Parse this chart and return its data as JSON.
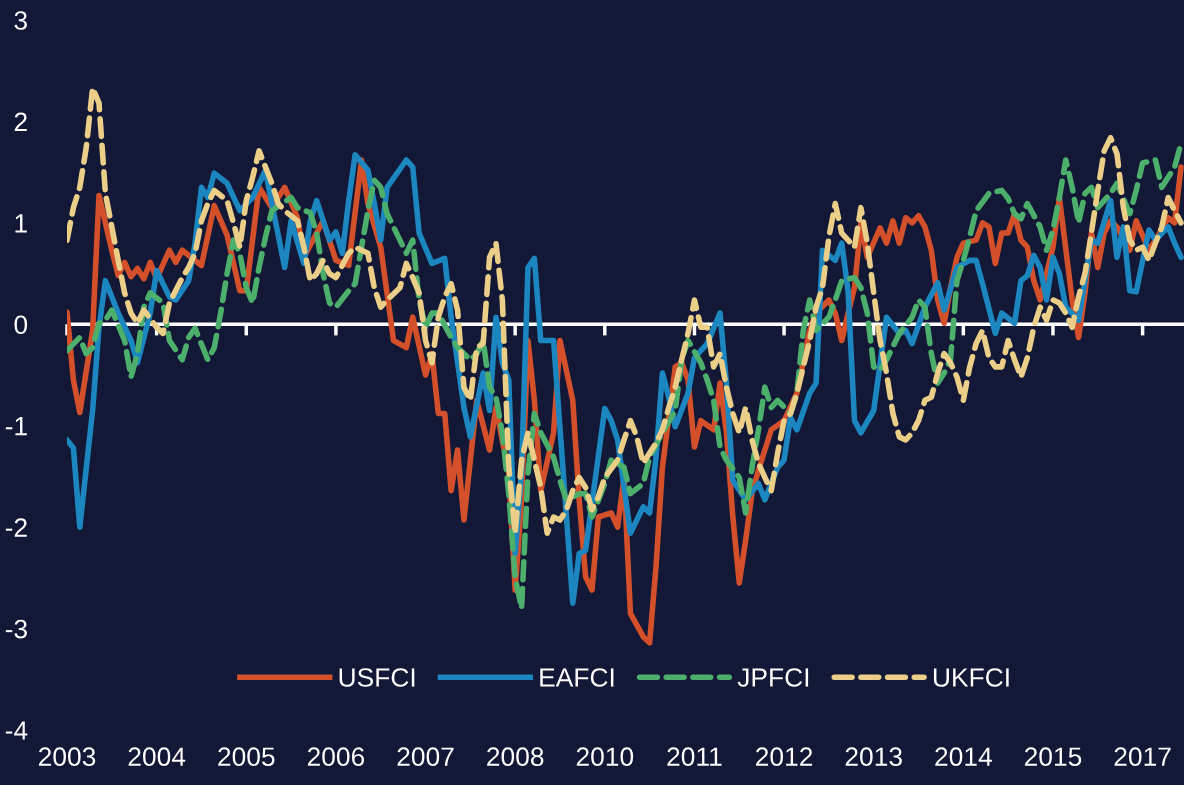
{
  "chart_data": {
    "type": "line",
    "xlim": [
      "2003-01",
      "2017-07-15"
    ],
    "xticks": [
      {
        "value": "2003-01",
        "label": "2003"
      },
      {
        "value": "2004-03",
        "label": "2004"
      },
      {
        "value": "2005-05",
        "label": "2005"
      },
      {
        "value": "2006-07",
        "label": "2006"
      },
      {
        "value": "2007-09",
        "label": "2007"
      },
      {
        "value": "2008-11",
        "label": "2008"
      },
      {
        "value": "2010-01",
        "label": "2010"
      },
      {
        "value": "2011-03",
        "label": "2011"
      },
      {
        "value": "2012-05",
        "label": "2012"
      },
      {
        "value": "2013-07",
        "label": "2013"
      },
      {
        "value": "2014-09",
        "label": "2014"
      },
      {
        "value": "2015-11",
        "label": "2015"
      },
      {
        "value": "2017-01",
        "label": "2017"
      }
    ],
    "ylim": [
      -4,
      3
    ],
    "yticks": [
      -4,
      -3,
      -2,
      -1,
      0,
      1,
      2,
      3
    ],
    "legend": "bottom",
    "ref_lines": [
      {
        "axis": "y",
        "value": 0,
        "color": "#ffffff",
        "line_style": "solid"
      }
    ],
    "series": [
      {
        "name": "USFCI",
        "color": "#d4502a",
        "line_style": "solid",
        "x": [
          "2003-01",
          "2003-02",
          "2003-03",
          "2003-05",
          "2003-06",
          "2003-08",
          "2003-09",
          "2003-10",
          "2003-11",
          "2003-12",
          "2004-01",
          "2004-02",
          "2004-03",
          "2004-05",
          "2004-06",
          "2004-07",
          "2004-10",
          "2004-12",
          "2005-02",
          "2005-04",
          "2005-05",
          "2005-07",
          "2005-09",
          "2005-11",
          "2006-01",
          "2006-02",
          "2006-05",
          "2006-07",
          "2006-09",
          "2006-11",
          "2006-12",
          "2007-02",
          "2007-04",
          "2007-06",
          "2007-07",
          "2007-09",
          "2007-10",
          "2007-11",
          "2007-12",
          "2008-01",
          "2008-02",
          "2008-03",
          "2008-05",
          "2008-07",
          "2008-08",
          "2008-10",
          "2008-11",
          "2008-12",
          "2009-01",
          "2009-02",
          "2009-03",
          "2009-05",
          "2009-06",
          "2009-08",
          "2009-09",
          "2009-10",
          "2009-11",
          "2009-12",
          "2010-02",
          "2010-03",
          "2010-04",
          "2010-05",
          "2010-07",
          "2010-08",
          "2010-09",
          "2010-10",
          "2010-12",
          "2011-01",
          "2011-02",
          "2011-03",
          "2011-04",
          "2011-06",
          "2011-07",
          "2011-08",
          "2011-09",
          "2011-10",
          "2011-11",
          "2011-12",
          "2012-01",
          "2012-03",
          "2012-05",
          "2012-07",
          "2012-09",
          "2012-10",
          "2012-12",
          "2013-01",
          "2013-02",
          "2013-03",
          "2013-04",
          "2013-05",
          "2013-06",
          "2013-08",
          "2013-09",
          "2013-10",
          "2013-11",
          "2013-12",
          "2014-01",
          "2014-02",
          "2014-03",
          "2014-04",
          "2014-05",
          "2014-06",
          "2014-07",
          "2014-08",
          "2014-09",
          "2014-11",
          "2014-12",
          "2015-01",
          "2015-02",
          "2015-03",
          "2015-04",
          "2015-05",
          "2015-06",
          "2015-07",
          "2015-08",
          "2015-09",
          "2015-11",
          "2015-12",
          "2016-02",
          "2016-03",
          "2016-04",
          "2016-05",
          "2016-06",
          "2016-07",
          "2016-08",
          "2016-09",
          "2016-11",
          "2016-12",
          "2017-02",
          "2017-03",
          "2017-05",
          "2017-06",
          "2017-07"
        ],
        "values": [
          0.12,
          -0.55,
          -0.87,
          -0.06,
          1.27,
          0.73,
          0.48,
          0.61,
          0.47,
          0.55,
          0.45,
          0.61,
          0.45,
          0.73,
          0.61,
          0.73,
          0.58,
          1.17,
          0.88,
          0.33,
          0.33,
          1.35,
          1.15,
          1.35,
          1.05,
          0.66,
          1.02,
          0.63,
          0.58,
          1.62,
          1.19,
          0.76,
          -0.16,
          -0.23,
          0.07,
          -0.5,
          -0.29,
          -0.88,
          -0.88,
          -1.64,
          -1.24,
          -1.93,
          -0.75,
          -1.24,
          -0.82,
          -1.47,
          -2.62,
          -1.73,
          -0.16,
          -0.75,
          -1.64,
          -1.07,
          -0.16,
          -0.75,
          -1.73,
          -2.49,
          -2.62,
          -1.9,
          -1.86,
          -2.0,
          -1.51,
          -2.85,
          -3.08,
          -3.14,
          -2.39,
          -1.41,
          -0.42,
          -0.38,
          -0.55,
          -1.21,
          -0.95,
          -1.04,
          -0.58,
          -1.07,
          -1.9,
          -2.55,
          -2.13,
          -1.66,
          -1.44,
          -1.04,
          -0.95,
          -0.68,
          -0.06,
          0.11,
          0.24,
          0.11,
          -0.16,
          0.11,
          0.36,
          1.0,
          0.66,
          0.95,
          0.8,
          1.02,
          0.8,
          1.05,
          1.0,
          1.07,
          0.96,
          0.73,
          0.24,
          0.01,
          0.36,
          0.66,
          0.8,
          0.83,
          1.0,
          0.96,
          0.6,
          0.9,
          0.9,
          1.09,
          0.83,
          0.76,
          0.43,
          0.24,
          0.76,
          1.25,
          0.24,
          -0.13,
          0.31,
          0.9,
          0.56,
          0.9,
          1.02,
          0.96,
          0.73,
          1.02,
          0.73,
          0.83,
          1.05,
          1.0,
          1.55
        ]
      },
      {
        "name": "EAFCI",
        "color": "#1b86bf",
        "line_style": "solid",
        "x": [
          "2003-01",
          "2003-02",
          "2003-03",
          "2003-05",
          "2003-06",
          "2003-07",
          "2003-09",
          "2003-11",
          "2003-12",
          "2004-02",
          "2004-03",
          "2004-05",
          "2004-06",
          "2004-08",
          "2004-09",
          "2004-10",
          "2004-11",
          "2004-12",
          "2005-02",
          "2005-04",
          "2005-06",
          "2005-08",
          "2005-09",
          "2005-11",
          "2005-12",
          "2006-02",
          "2006-03",
          "2006-04",
          "2006-06",
          "2006-07",
          "2006-08",
          "2006-09",
          "2006-10",
          "2006-12",
          "2007-01",
          "2007-02",
          "2007-03",
          "2007-06",
          "2007-07",
          "2007-08",
          "2007-10",
          "2007-12",
          "2008-01",
          "2008-03",
          "2008-04",
          "2008-06",
          "2008-07",
          "2008-08",
          "2008-09",
          "2008-10",
          "2008-11",
          "2008-12",
          "2009-01",
          "2009-02",
          "2009-03",
          "2009-05",
          "2009-08",
          "2009-09",
          "2009-10",
          "2010-01",
          "2010-02",
          "2010-03",
          "2010-05",
          "2010-07",
          "2010-08",
          "2010-09",
          "2010-10",
          "2010-11",
          "2010-12",
          "2011-02",
          "2011-03",
          "2011-05",
          "2011-07",
          "2011-08",
          "2011-09",
          "2011-11",
          "2012-01",
          "2012-02",
          "2012-04",
          "2012-05",
          "2012-06",
          "2012-07",
          "2012-09",
          "2012-10",
          "2012-11",
          "2013-01",
          "2013-02",
          "2013-03",
          "2013-04",
          "2013-05",
          "2013-07",
          "2013-09",
          "2013-11",
          "2013-12",
          "2014-01",
          "2014-03",
          "2014-05",
          "2014-06",
          "2014-08",
          "2014-10",
          "2014-11",
          "2014-12",
          "2015-02",
          "2015-03",
          "2015-05",
          "2015-06",
          "2015-07",
          "2015-08",
          "2015-09",
          "2015-10",
          "2015-11",
          "2015-12",
          "2016-01",
          "2016-03",
          "2016-05",
          "2016-06",
          "2016-08",
          "2016-09",
          "2016-10",
          "2016-11",
          "2016-12",
          "2017-02",
          "2017-03",
          "2017-05",
          "2017-06",
          "2017-07"
        ],
        "values": [
          -1.14,
          -1.22,
          -2.0,
          -0.85,
          -0.03,
          0.43,
          0.11,
          -0.16,
          -0.38,
          0.11,
          0.53,
          0.27,
          0.24,
          0.43,
          0.8,
          1.35,
          1.25,
          1.49,
          1.39,
          1.12,
          1.25,
          1.52,
          1.19,
          0.56,
          1.02,
          0.6,
          1.02,
          1.22,
          0.83,
          0.91,
          0.7,
          1.22,
          1.67,
          1.52,
          1.19,
          0.83,
          1.35,
          1.62,
          1.55,
          0.9,
          0.6,
          0.65,
          0.07,
          -0.82,
          -1.11,
          -0.48,
          -0.85,
          0.07,
          -0.38,
          -0.55,
          -2.26,
          -1.44,
          0.56,
          0.65,
          -0.16,
          -0.16,
          -2.75,
          -2.26,
          -2.23,
          -0.83,
          -0.95,
          -1.14,
          -2.06,
          -1.8,
          -1.86,
          -1.31,
          -0.48,
          -0.72,
          -1.01,
          -0.68,
          -0.33,
          -0.19,
          0.11,
          -0.58,
          -1.54,
          -1.73,
          -1.57,
          -1.73,
          -1.41,
          -1.34,
          -0.92,
          -1.04,
          -0.68,
          -0.58,
          0.73,
          0.63,
          0.8,
          0.33,
          -0.95,
          -1.07,
          -0.85,
          0.07,
          -0.09,
          -0.06,
          -0.19,
          0.17,
          0.41,
          0.14,
          0.56,
          0.63,
          0.63,
          0.4,
          -0.09,
          0.11,
          0.01,
          0.43,
          0.48,
          0.68,
          0.56,
          0.24,
          0.66,
          0.5,
          0.17,
          0.04,
          0.83,
          0.8,
          1.22,
          0.66,
          0.96,
          0.33,
          0.32,
          0.93,
          0.83,
          0.96,
          0.8,
          0.66
        ]
      },
      {
        "name": "JPFCI",
        "color": "#4caf6c",
        "line_style": "dashed",
        "x": [
          "2003-01",
          "2003-03",
          "2003-04",
          "2003-05",
          "2003-06",
          "2003-07",
          "2003-08",
          "2003-10",
          "2003-11",
          "2003-12",
          "2004-01",
          "2004-02",
          "2004-04",
          "2004-05",
          "2004-07",
          "2004-08",
          "2004-09",
          "2004-11",
          "2004-12",
          "2005-01",
          "2005-02",
          "2005-03",
          "2005-04",
          "2005-05",
          "2005-06",
          "2005-07",
          "2005-08",
          "2005-09",
          "2005-12",
          "2006-01",
          "2006-03",
          "2006-04",
          "2006-05",
          "2006-06",
          "2006-07",
          "2006-09",
          "2006-10",
          "2006-11",
          "2006-12",
          "2007-01",
          "2007-02",
          "2007-03",
          "2007-05",
          "2007-06",
          "2007-07",
          "2007-08",
          "2007-09",
          "2007-10",
          "2007-11",
          "2008-01",
          "2008-02",
          "2008-04",
          "2008-05",
          "2008-06",
          "2008-07",
          "2008-08",
          "2008-09",
          "2008-10",
          "2008-11",
          "2008-12",
          "2009-01",
          "2009-02",
          "2009-03",
          "2009-05",
          "2009-06",
          "2009-07",
          "2009-09",
          "2009-10",
          "2009-11",
          "2010-01",
          "2010-02",
          "2010-04",
          "2010-05",
          "2010-07",
          "2010-08",
          "2010-10",
          "2010-12",
          "2011-01",
          "2011-02",
          "2011-04",
          "2011-05",
          "2011-06",
          "2011-07",
          "2011-08",
          "2011-10",
          "2011-11",
          "2011-12",
          "2012-01",
          "2012-02",
          "2012-03",
          "2012-04",
          "2012-06",
          "2012-07",
          "2012-08",
          "2012-09",
          "2012-10",
          "2012-12",
          "2013-01",
          "2013-02",
          "2013-04",
          "2013-05",
          "2013-06",
          "2013-07",
          "2013-08",
          "2013-09",
          "2013-11",
          "2014-01",
          "2014-02",
          "2014-03",
          "2014-04",
          "2014-05",
          "2014-06",
          "2014-07",
          "2014-08",
          "2014-09",
          "2014-10",
          "2014-11",
          "2015-01",
          "2015-03",
          "2015-04",
          "2015-05",
          "2015-06",
          "2015-07",
          "2015-09",
          "2015-10",
          "2015-11",
          "2015-12",
          "2016-01",
          "2016-02",
          "2016-03",
          "2016-04",
          "2016-05",
          "2016-06",
          "2016-08",
          "2016-09",
          "2016-11",
          "2016-12",
          "2017-01",
          "2017-03",
          "2017-04",
          "2017-06",
          "2017-07"
        ],
        "values": [
          -0.26,
          -0.13,
          -0.29,
          -0.23,
          0.01,
          0.04,
          0.14,
          -0.16,
          -0.52,
          -0.29,
          0.17,
          0.31,
          0.21,
          -0.16,
          -0.35,
          -0.13,
          -0.04,
          -0.35,
          -0.23,
          0.11,
          0.5,
          0.83,
          0.7,
          0.36,
          0.21,
          0.56,
          0.86,
          1.12,
          1.25,
          1.15,
          1.1,
          0.9,
          0.5,
          0.21,
          0.17,
          0.33,
          0.4,
          0.76,
          1.12,
          1.42,
          1.35,
          1.09,
          0.83,
          0.7,
          0.83,
          0.24,
          -0.03,
          0.11,
          0.11,
          -0.13,
          -0.23,
          -0.35,
          -0.29,
          -0.16,
          -0.62,
          -0.72,
          -1.07,
          -1.67,
          -2.5,
          -2.8,
          -1.47,
          -0.88,
          -1.07,
          -1.31,
          -1.54,
          -1.73,
          -1.67,
          -1.67,
          -1.9,
          -1.57,
          -1.34,
          -1.41,
          -1.67,
          -1.57,
          -1.31,
          -1.07,
          -0.85,
          -0.35,
          -0.16,
          -0.38,
          -0.55,
          -0.75,
          -1.21,
          -1.34,
          -1.51,
          -1.86,
          -1.41,
          -1.04,
          -0.62,
          -0.82,
          -0.75,
          -0.88,
          -0.68,
          -0.06,
          0.24,
          -0.06,
          0.07,
          0.24,
          0.43,
          0.46,
          0.36,
          0.11,
          -0.42,
          -0.45,
          -0.35,
          -0.09,
          0.07,
          0.24,
          0.17,
          -0.29,
          -0.58,
          -0.48,
          -0.35,
          0.43,
          0.63,
          0.86,
          1.12,
          1.29,
          1.32,
          1.24,
          1.09,
          1.04,
          1.19,
          0.96,
          0.73,
          0.93,
          1.25,
          1.62,
          1.35,
          1.0,
          1.29,
          1.35,
          1.15,
          1.29,
          1.39,
          1.09,
          1.32,
          1.59,
          1.62,
          1.35,
          1.55,
          1.78
        ]
      },
      {
        "name": "UKFCI",
        "color": "#ebcf88",
        "line_style": "dashed",
        "x": [
          "2003-01",
          "2003-02",
          "2003-03",
          "2003-04",
          "2003-05",
          "2003-06",
          "2003-07",
          "2003-08",
          "2003-09",
          "2003-10",
          "2003-11",
          "2003-12",
          "2004-01",
          "2004-03",
          "2004-04",
          "2004-05",
          "2004-07",
          "2004-08",
          "2004-09",
          "2004-10",
          "2004-11",
          "2004-12",
          "2005-02",
          "2005-03",
          "2005-04",
          "2005-05",
          "2005-06",
          "2005-07",
          "2005-08",
          "2005-09",
          "2005-10",
          "2005-11",
          "2006-01",
          "2006-02",
          "2006-03",
          "2006-04",
          "2006-05",
          "2006-06",
          "2006-07",
          "2006-09",
          "2006-10",
          "2006-12",
          "2007-01",
          "2007-02",
          "2007-03",
          "2007-05",
          "2007-06",
          "2007-07",
          "2007-08",
          "2007-09",
          "2007-10",
          "2007-11",
          "2007-12",
          "2008-01",
          "2008-02",
          "2008-03",
          "2008-04",
          "2008-05",
          "2008-06",
          "2008-07",
          "2008-08",
          "2008-09",
          "2008-10",
          "2008-11",
          "2008-12",
          "2009-01",
          "2009-02",
          "2009-03",
          "2009-04",
          "2009-05",
          "2009-06",
          "2009-07",
          "2009-08",
          "2009-09",
          "2009-10",
          "2009-11",
          "2009-12",
          "2010-01",
          "2010-03",
          "2010-04",
          "2010-05",
          "2010-06",
          "2010-07",
          "2010-08",
          "2010-09",
          "2010-10",
          "2010-11",
          "2010-12",
          "2011-01",
          "2011-02",
          "2011-03",
          "2011-04",
          "2011-05",
          "2011-06",
          "2011-07",
          "2011-08",
          "2011-09",
          "2011-10",
          "2011-11",
          "2011-12",
          "2012-01",
          "2012-02",
          "2012-03",
          "2012-04",
          "2012-05",
          "2012-06",
          "2012-07",
          "2012-09",
          "2012-10",
          "2012-11",
          "2012-12",
          "2013-01",
          "2013-02",
          "2013-03",
          "2013-04",
          "2013-05",
          "2013-06",
          "2013-07",
          "2013-08",
          "2013-09",
          "2013-10",
          "2013-11",
          "2013-12",
          "2014-01",
          "2014-02",
          "2014-03",
          "2014-04",
          "2014-05",
          "2014-06",
          "2014-07",
          "2014-08",
          "2014-09",
          "2014-10",
          "2014-11",
          "2014-12",
          "2015-01",
          "2015-02",
          "2015-03",
          "2015-04",
          "2015-05",
          "2015-06",
          "2015-07",
          "2015-08",
          "2015-09",
          "2015-10",
          "2015-11",
          "2015-12",
          "2016-01",
          "2016-02",
          "2016-03",
          "2016-04",
          "2016-05",
          "2016-06",
          "2016-07",
          "2016-08",
          "2016-09",
          "2016-10",
          "2016-11",
          "2016-12",
          "2017-01",
          "2017-02",
          "2017-03",
          "2017-04",
          "2017-05",
          "2017-06",
          "2017-07"
        ],
        "values": [
          0.83,
          1.15,
          1.35,
          1.74,
          2.33,
          2.18,
          1.29,
          0.96,
          0.63,
          0.31,
          0.11,
          0.01,
          0.14,
          -0.03,
          -0.09,
          0.21,
          0.46,
          0.56,
          0.7,
          1.02,
          1.19,
          1.32,
          1.22,
          1.0,
          0.76,
          1.22,
          1.45,
          1.71,
          1.55,
          1.39,
          1.19,
          1.12,
          1.02,
          0.76,
          0.43,
          0.5,
          0.63,
          0.5,
          0.46,
          0.7,
          0.76,
          0.7,
          0.36,
          0.17,
          0.24,
          0.36,
          0.6,
          0.46,
          0.31,
          -0.16,
          -0.38,
          0.07,
          0.27,
          0.4,
          0.14,
          -0.62,
          -0.75,
          -0.23,
          -0.19,
          0.66,
          0.8,
          0.24,
          -1.4,
          -2.06,
          -1.34,
          -1.07,
          -1.34,
          -1.61,
          -2.06,
          -1.9,
          -1.93,
          -1.83,
          -1.64,
          -1.51,
          -1.61,
          -1.83,
          -1.7,
          -1.51,
          -1.34,
          -1.14,
          -0.95,
          -1.11,
          -1.37,
          -1.27,
          -1.17,
          -1.04,
          -0.82,
          -0.62,
          -0.35,
          -0.09,
          0.24,
          -0.03,
          -0.03,
          -0.42,
          -0.29,
          -0.62,
          -0.88,
          -1.07,
          -0.82,
          -1.14,
          -1.37,
          -1.51,
          -1.64,
          -1.27,
          -0.95,
          -0.88,
          -0.68,
          -0.16,
          0.17,
          0.36,
          0.86,
          1.19,
          0.9,
          0.83,
          0.76,
          1.15,
          0.8,
          0.31,
          -0.16,
          -0.48,
          -0.88,
          -1.11,
          -1.14,
          -1.07,
          -0.95,
          -0.75,
          -0.72,
          -0.48,
          -0.29,
          -0.38,
          -0.52,
          -0.75,
          -0.42,
          -0.19,
          -0.06,
          -0.33,
          -0.42,
          -0.42,
          -0.16,
          -0.35,
          -0.52,
          -0.33,
          -0.03,
          0.17,
          0.04,
          0.24,
          0.21,
          0.11,
          -0.03,
          0.27,
          0.5,
          0.9,
          1.32,
          1.71,
          1.84,
          1.68,
          1.15,
          0.83,
          0.73,
          0.76,
          0.63,
          0.8,
          0.96,
          1.25,
          1.12,
          1.0
        ]
      }
    ]
  }
}
